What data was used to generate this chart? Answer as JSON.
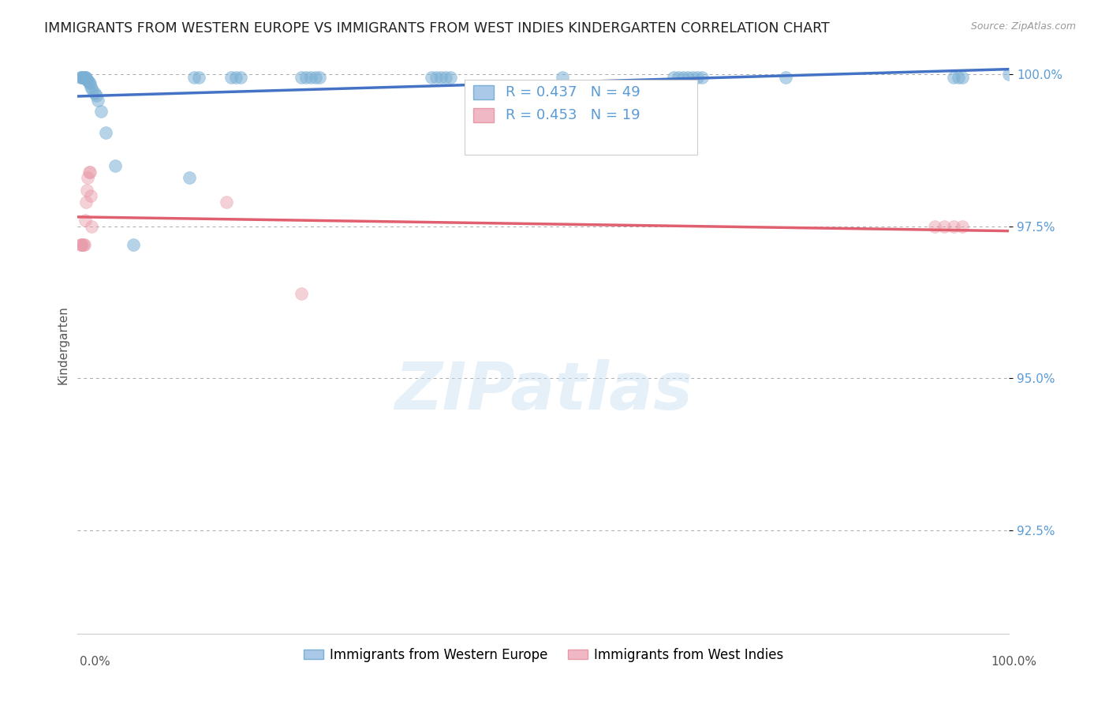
{
  "title": "IMMIGRANTS FROM WESTERN EUROPE VS IMMIGRANTS FROM WEST INDIES KINDERGARTEN CORRELATION CHART",
  "source": "Source: ZipAtlas.com",
  "ylabel": "Kindergarten",
  "xlim": [
    0.0,
    1.0
  ],
  "ylim": [
    0.908,
    1.003
  ],
  "yticks": [
    0.925,
    0.95,
    0.975,
    1.0
  ],
  "ytick_labels": [
    "92.5%",
    "95.0%",
    "97.5%",
    "100.0%"
  ],
  "blue_R": 0.437,
  "blue_N": 49,
  "pink_R": 0.453,
  "pink_N": 19,
  "watermark_text": "ZIPatlas",
  "blue_color": "#7ab0d4",
  "pink_color": "#e899a8",
  "blue_line_color": "#4472c4",
  "pink_line_color": "#e06070",
  "background_color": "#ffffff",
  "grid_color": "#aaaaaa",
  "text_color_blue": "#5b9bd5",
  "title_color": "#222222",
  "title_fontsize": 12.5,
  "label_fontsize": 11,
  "tick_fontsize": 11,
  "legend_fontsize": 12,
  "blue_x": [
    0.003,
    0.004,
    0.005,
    0.006,
    0.007,
    0.008,
    0.009,
    0.01,
    0.011,
    0.012,
    0.013,
    0.014,
    0.016,
    0.018,
    0.02,
    0.022,
    0.025,
    0.03,
    0.04,
    0.06,
    0.12,
    0.125,
    0.13,
    0.165,
    0.17,
    0.175,
    0.24,
    0.245,
    0.25,
    0.255,
    0.26,
    0.38,
    0.385,
    0.39,
    0.395,
    0.4,
    0.52,
    0.64,
    0.645,
    0.65,
    0.655,
    0.66,
    0.665,
    0.67,
    0.76,
    0.94,
    0.945,
    0.95,
    1.0
  ],
  "blue_y": [
    0.9995,
    0.9995,
    0.9995,
    0.9995,
    0.9995,
    0.9995,
    0.9995,
    0.9992,
    0.999,
    0.9988,
    0.9985,
    0.998,
    0.9975,
    0.997,
    0.9965,
    0.9958,
    0.994,
    0.9905,
    0.985,
    0.972,
    0.983,
    0.9995,
    0.9995,
    0.9995,
    0.9995,
    0.9995,
    0.9995,
    0.9995,
    0.9995,
    0.9995,
    0.9995,
    0.9995,
    0.9995,
    0.9995,
    0.9995,
    0.9995,
    0.9995,
    0.9995,
    0.9995,
    0.9995,
    0.9995,
    0.9995,
    0.9995,
    0.9995,
    0.9995,
    0.9995,
    0.9995,
    0.9995,
    1.0
  ],
  "pink_x": [
    0.003,
    0.004,
    0.005,
    0.006,
    0.007,
    0.008,
    0.009,
    0.01,
    0.011,
    0.012,
    0.013,
    0.014,
    0.015,
    0.24,
    0.16,
    0.92,
    0.93,
    0.94,
    0.95
  ],
  "pink_y": [
    0.972,
    0.972,
    0.972,
    0.972,
    0.972,
    0.976,
    0.979,
    0.981,
    0.983,
    0.984,
    0.984,
    0.98,
    0.975,
    0.964,
    0.979,
    0.975,
    0.975,
    0.975,
    0.975
  ]
}
